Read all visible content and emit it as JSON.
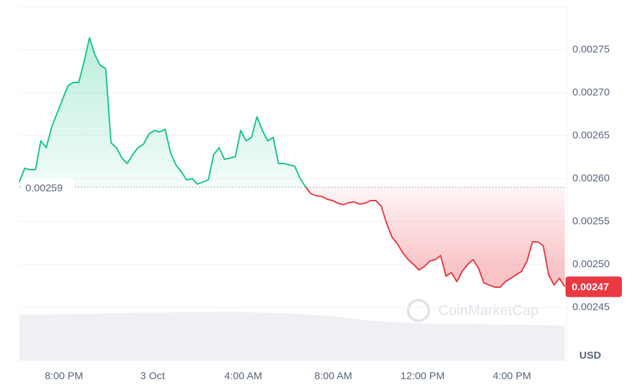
{
  "chart_data": {
    "type": "line",
    "values": [
      0.002596,
      0.002612,
      0.0026104,
      0.0026104,
      0.002644,
      0.002636,
      0.00266,
      0.002676,
      0.002692,
      0.002708,
      0.002712,
      0.002712,
      0.002736,
      0.002764,
      0.002744,
      0.002732,
      0.002728,
      0.0026416,
      0.002636,
      0.002624,
      0.0026176,
      0.002628,
      0.002636,
      0.00264,
      0.002652,
      0.002656,
      0.0026544,
      0.0026576,
      0.0026304,
      0.002616,
      0.002608,
      0.0025984,
      0.0026,
      0.0025936,
      0.002596,
      0.0025984,
      0.002628,
      0.002636,
      0.0026224,
      0.002624,
      0.0026256,
      0.002656,
      0.002644,
      0.002648,
      0.002672,
      0.002656,
      0.002644,
      0.002648,
      0.0026176,
      0.0026176,
      0.002616,
      0.0026144,
      0.0026,
      0.0025904,
      0.0025824,
      0.00258,
      0.0025792,
      0.002576,
      0.0025744,
      0.0025712,
      0.0025696,
      0.002572,
      0.0025728,
      0.0025704,
      0.0025712,
      0.0025744,
      0.0025744,
      0.002568,
      0.002548,
      0.002532,
      0.002524,
      0.0025136,
      0.0025056,
      0.0025,
      0.0024936,
      0.0024976,
      0.002504,
      0.0025056,
      0.0025104,
      0.0024864,
      0.0024904,
      0.00248,
      0.002492,
      0.0025,
      0.0025056,
      0.002496,
      0.0024784,
      0.002476,
      0.0024736,
      0.0024736,
      0.00248,
      0.002484,
      0.002488,
      0.002492,
      0.002504,
      0.0025264,
      0.0025264,
      0.0025216,
      0.002488,
      0.002476,
      0.002484,
      0.002474
    ],
    "last_label": "0.00247",
    "baseline": 0.00259,
    "up_color": "#16c784",
    "down_color": "#ea3943",
    "ylim": [
      0.00244,
      0.0028
    ],
    "yticks": [
      0.00245,
      {
        "value": 0.0025,
        "label": "0.00250"
      },
      0.00255,
      {
        "value": 0.0026,
        "label": "0.00260"
      },
      0.00265,
      {
        "value": 0.0027,
        "label": "0.00270"
      },
      0.00275
    ],
    "x_labels": [
      "8:00 PM",
      "3 Oct",
      "4:00 AM",
      "8:00 AM",
      "12:00 PM",
      "4:00 PM"
    ],
    "unit": "USD",
    "watermark": "CoinMarketCap"
  }
}
